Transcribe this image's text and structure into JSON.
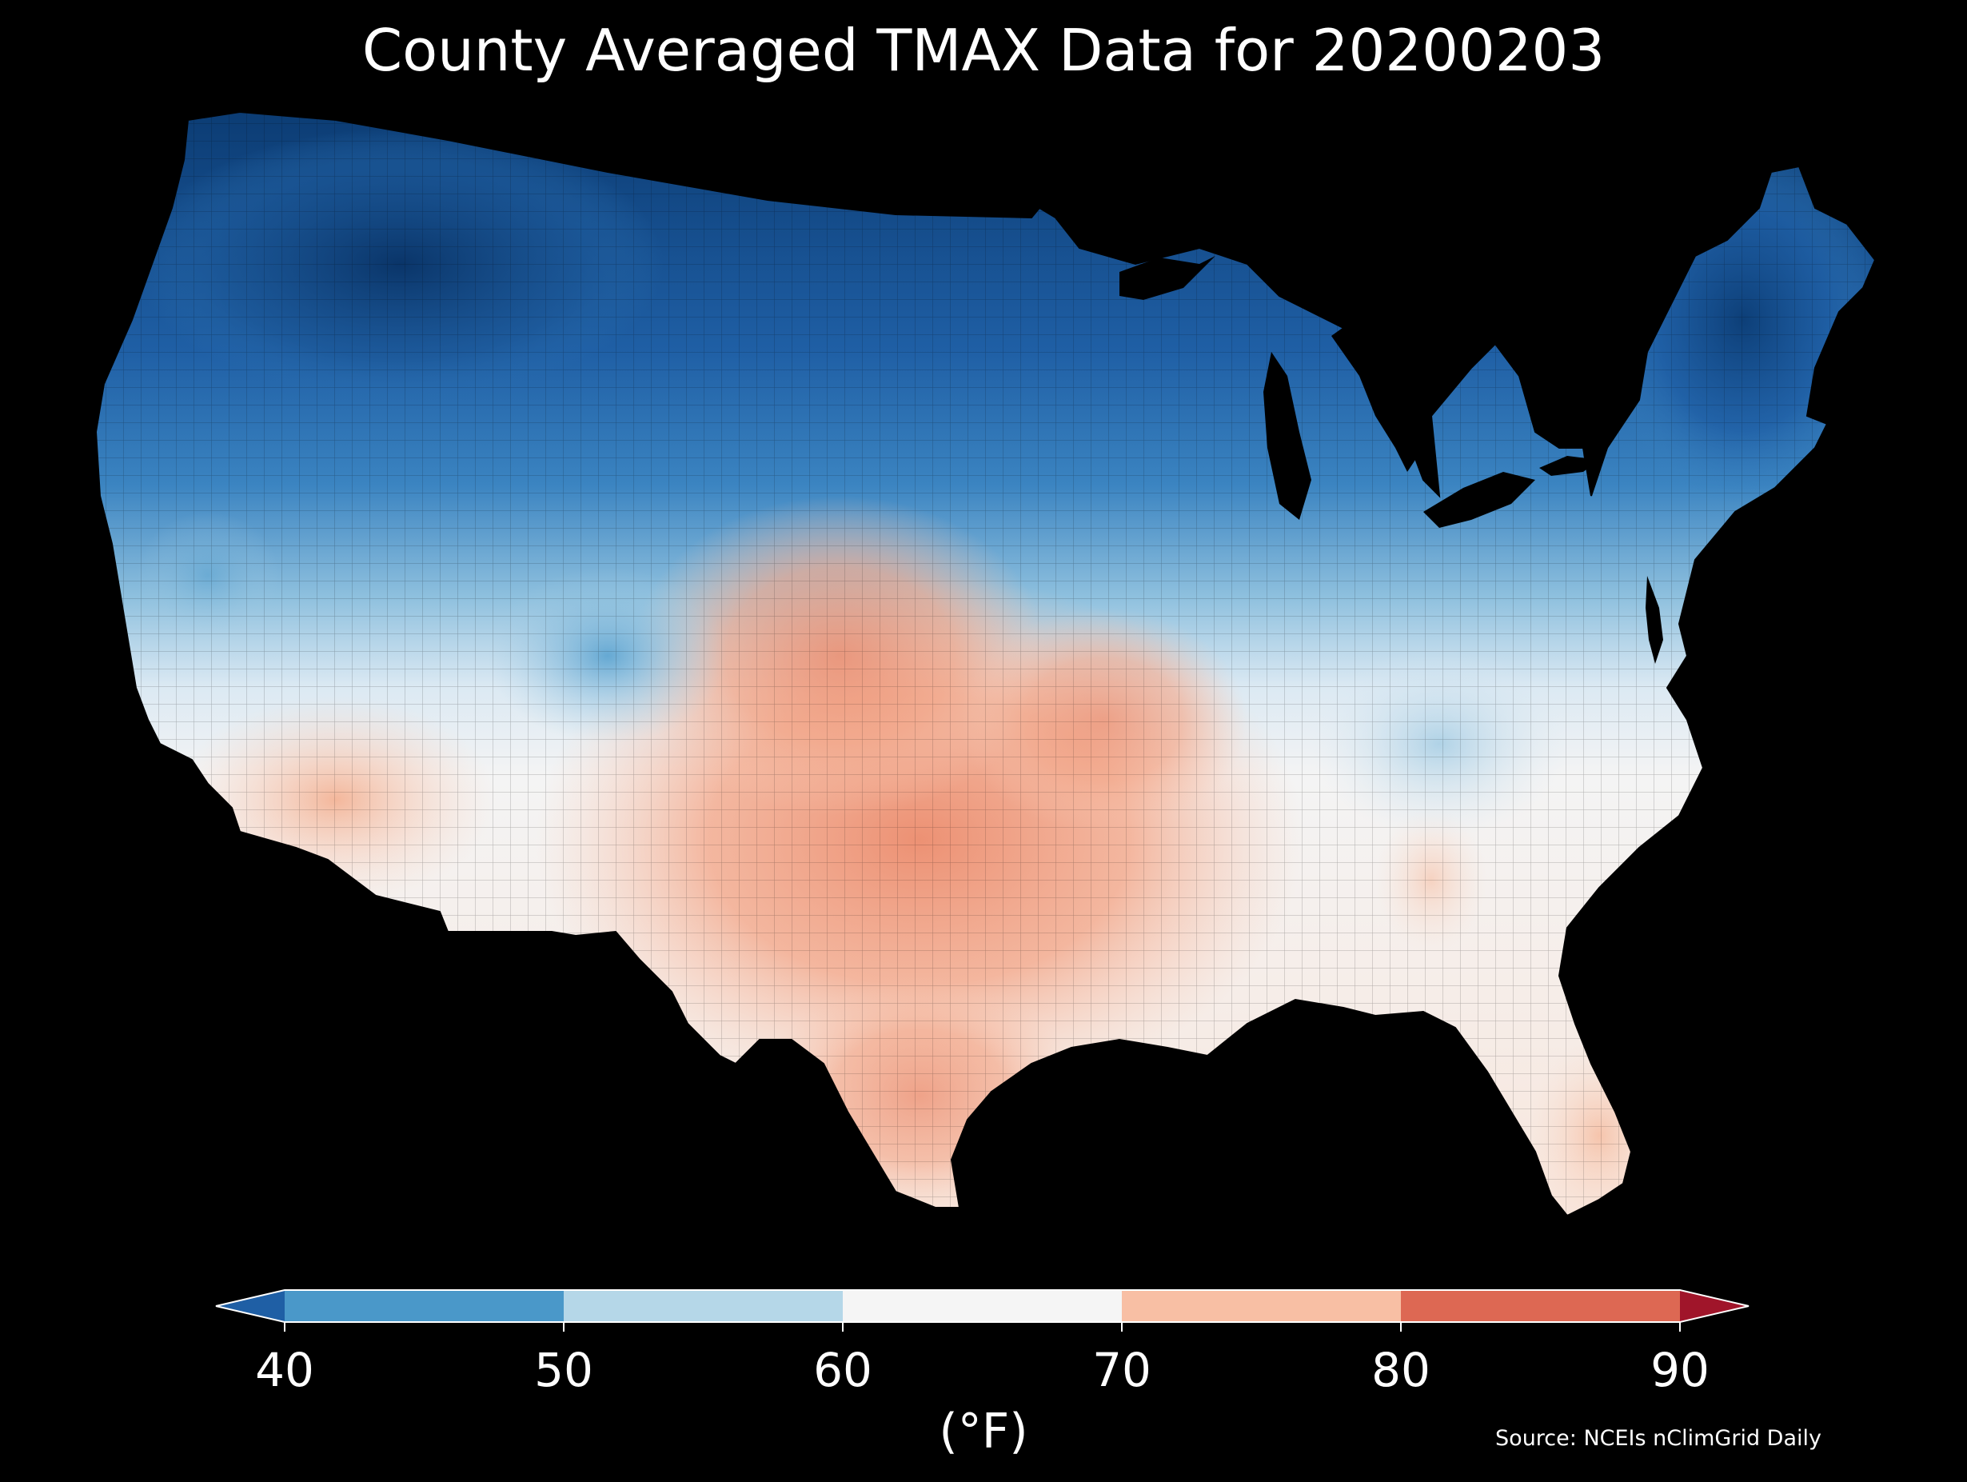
{
  "title": "County Averaged TMAX Data for 20200203",
  "colorbar": {
    "unit": "(°F)",
    "ticks": [
      "40",
      "50",
      "60",
      "70",
      "80",
      "90"
    ],
    "bins": [
      {
        "from": 40,
        "to": 50,
        "color": "#4a98c9"
      },
      {
        "from": 50,
        "to": 60,
        "color": "#b5d7e8"
      },
      {
        "from": 60,
        "to": 70,
        "color": "#f5f5f5"
      },
      {
        "from": 70,
        "to": 80,
        "color": "#f8bfa4"
      },
      {
        "from": 80,
        "to": 90,
        "color": "#dd6853"
      }
    ],
    "under_color": "#1f5fa5",
    "over_color": "#a0152a",
    "extend": "both"
  },
  "source": "Source: NCEIs nClimGrid Daily",
  "colors": {
    "background": "#000000",
    "text": "#ffffff",
    "very_cold": "#0b3b72",
    "cold": "#2b70b2",
    "cool": "#5ba3d0",
    "mild_cool": "#a9cfe5",
    "neutral": "#eef2f6",
    "warm": "#f7c6ae",
    "hot": "#e98b6d"
  }
}
